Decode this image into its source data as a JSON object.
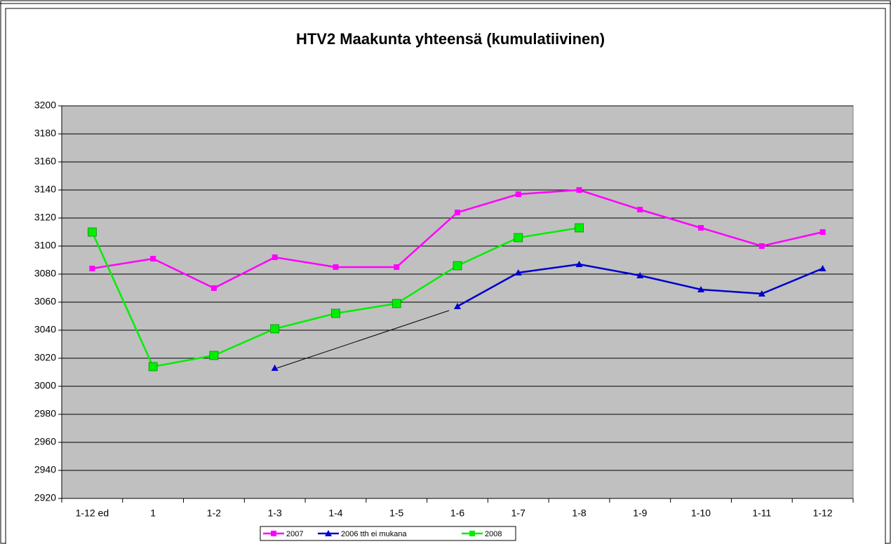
{
  "chart_data": {
    "type": "line",
    "title": "HTV2 Maakunta yhteensä (kumulatiivinen)",
    "categories": [
      "1-12 ed",
      "1",
      "1-2",
      "1-3",
      "1-4",
      "1-5",
      "1-6",
      "1-7",
      "1-8",
      "1-9",
      "1-10",
      "1-11",
      "1-12"
    ],
    "series": [
      {
        "name": "2007",
        "color": "#ff00ff",
        "marker": "square",
        "values": [
          3084,
          3091,
          3070,
          3092,
          3085,
          3085,
          3124,
          3137,
          3140,
          3126,
          3113,
          3100,
          3110
        ]
      },
      {
        "name": "2006 tth ei mukana",
        "color": "#0000cc",
        "marker": "triangle",
        "values": [
          null,
          null,
          null,
          3013,
          null,
          null,
          3057,
          3081,
          3087,
          3079,
          3069,
          3066,
          3084
        ]
      },
      {
        "name": "2008",
        "color": "#00ee00",
        "marker": "big-square",
        "values": [
          3110,
          3014,
          3022,
          3041,
          3052,
          3059,
          3086,
          3106,
          3113,
          null,
          null,
          null,
          null
        ]
      }
    ],
    "ylim": [
      2920,
      3200
    ],
    "yticks": [
      2920,
      2940,
      2960,
      2980,
      3000,
      3020,
      3040,
      3060,
      3080,
      3100,
      3120,
      3140,
      3160,
      3180,
      3200
    ],
    "grid": true,
    "legend": "bottom"
  }
}
